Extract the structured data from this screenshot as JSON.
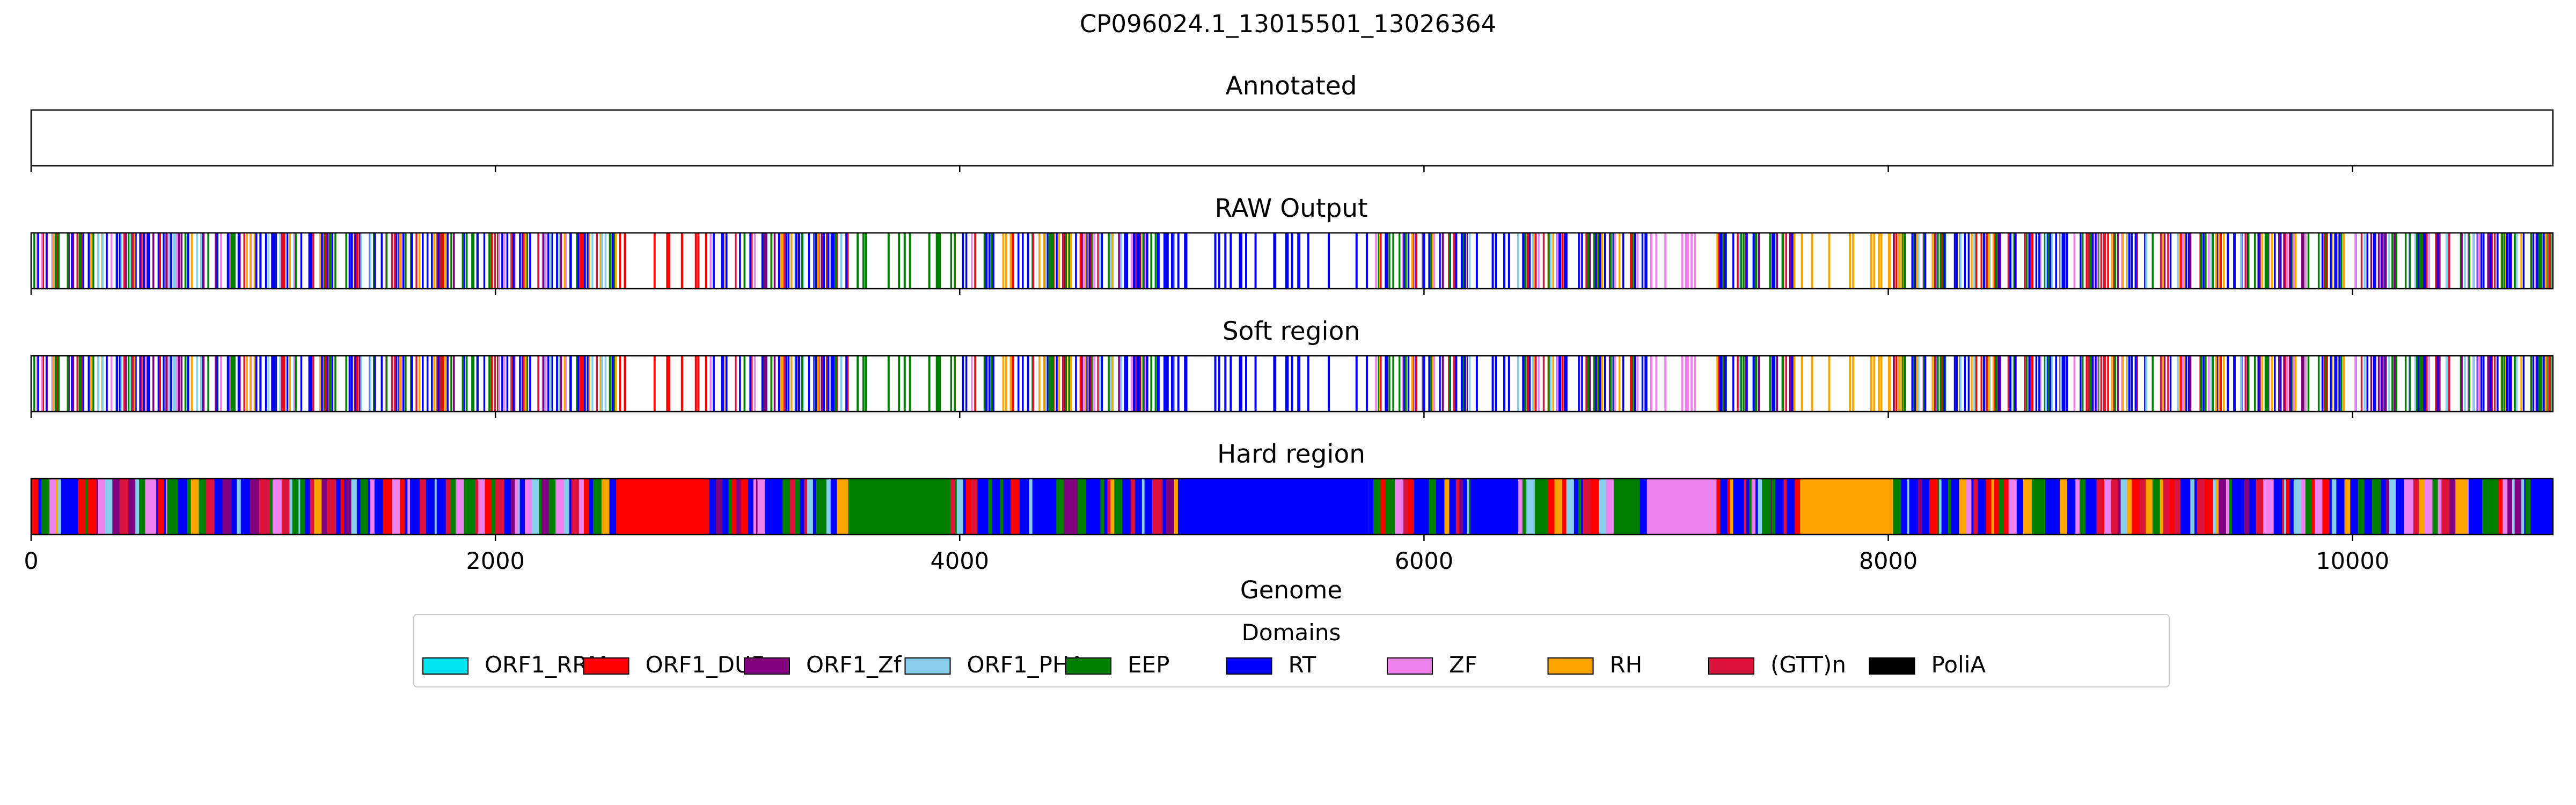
{
  "chart_data": {
    "type": "track",
    "title": "CP096024.1_13015501_13026364",
    "xlabel": "Genome",
    "xlim": [
      0,
      10863
    ],
    "xticks": [
      0,
      2000,
      4000,
      6000,
      8000,
      10000
    ],
    "tracks": [
      {
        "id": "annotated",
        "label": "Annotated",
        "segments": []
      },
      {
        "id": "raw",
        "label": "RAW Output",
        "style": "thin-lines"
      },
      {
        "id": "soft",
        "label": "Soft region",
        "style": "thin-lines"
      },
      {
        "id": "hard",
        "label": "Hard region",
        "style": "filled"
      }
    ],
    "legend": {
      "title": "Domains",
      "placement": "bottom-center",
      "items": [
        {
          "name": "ORF1_RRM",
          "color": "#00e5ee"
        },
        {
          "name": "ORF1_DUF",
          "color": "#ff0000"
        },
        {
          "name": "ORF1_Zf",
          "color": "#800080"
        },
        {
          "name": "ORF1_PHA",
          "color": "#87ceeb"
        },
        {
          "name": "EEP",
          "color": "#008000"
        },
        {
          "name": "RT",
          "color": "#0000ff"
        },
        {
          "name": "ZF",
          "color": "#ee82ee"
        },
        {
          "name": "RH",
          "color": "#ffa500"
        },
        {
          "name": "(GTT)n",
          "color": "#dc143c"
        },
        {
          "name": "PoliA",
          "color": "#000000"
        }
      ]
    },
    "regions": [
      {
        "start": 0,
        "end": 380,
        "domain": "mixed"
      },
      {
        "start": 380,
        "end": 1200,
        "domain": "mixed"
      },
      {
        "start": 1200,
        "end": 2520,
        "domain": "mixed"
      },
      {
        "start": 2520,
        "end": 2920,
        "domain": "ORF1_DUF"
      },
      {
        "start": 2920,
        "end": 3520,
        "domain": "mixed"
      },
      {
        "start": 3520,
        "end": 3960,
        "domain": "EEP"
      },
      {
        "start": 3960,
        "end": 4940,
        "domain": "mixed"
      },
      {
        "start": 4940,
        "end": 5760,
        "domain": "RT"
      },
      {
        "start": 5760,
        "end": 6200,
        "domain": "mixed"
      },
      {
        "start": 6200,
        "end": 6400,
        "domain": "RT"
      },
      {
        "start": 6400,
        "end": 6960,
        "domain": "mixed"
      },
      {
        "start": 6960,
        "end": 7260,
        "domain": "ZF"
      },
      {
        "start": 7260,
        "end": 7620,
        "domain": "mixed"
      },
      {
        "start": 7620,
        "end": 8020,
        "domain": "RH"
      },
      {
        "start": 8020,
        "end": 10863,
        "domain": "mixed"
      }
    ]
  }
}
